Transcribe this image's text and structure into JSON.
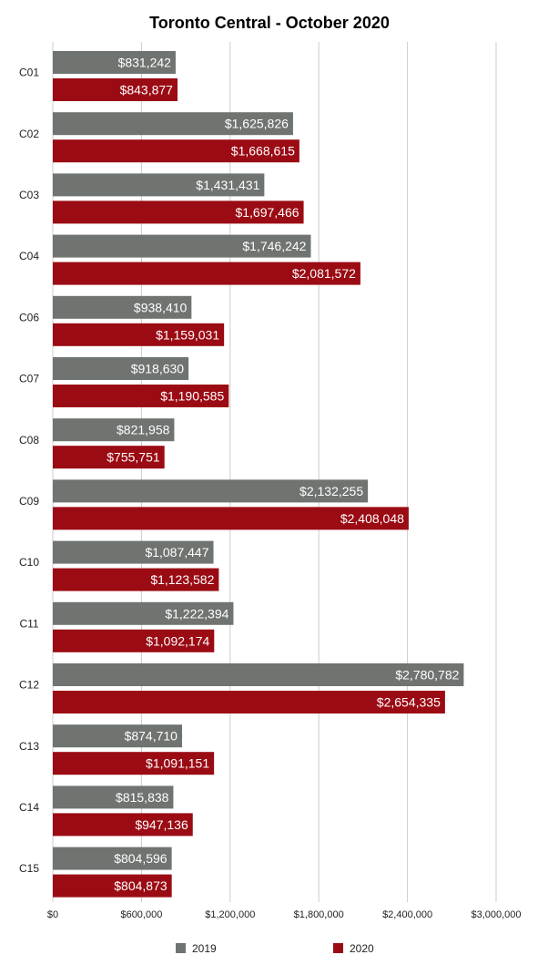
{
  "chart_data": {
    "type": "bar",
    "orientation": "horizontal",
    "title": "Toronto Central - October 2020",
    "xlabel": "",
    "ylabel": "",
    "xlim": [
      0,
      3000000
    ],
    "grid": true,
    "legend_position": "bottom",
    "tick_labels": [
      "$0",
      "$600,000",
      "$1,200,000",
      "$1,800,000",
      "$2,400,000",
      "$3,000,000"
    ],
    "tick_values": [
      0,
      600000,
      1200000,
      1800000,
      2400000,
      3000000
    ],
    "categories": [
      "C01",
      "C02",
      "C03",
      "C04",
      "C06",
      "C07",
      "C08",
      "C09",
      "C10",
      "C11",
      "C12",
      "C13",
      "C14",
      "C15"
    ],
    "series": [
      {
        "name": "2019",
        "color": "#6f7471",
        "values": [
          831242,
          1625826,
          1431431,
          1746242,
          938410,
          918630,
          821958,
          2132255,
          1087447,
          1222394,
          2780782,
          874710,
          815838,
          804596
        ],
        "labels": [
          "$831,242",
          "$1,625,826",
          "$1,431,431",
          "$1,746,242",
          "$938,410",
          "$918,630",
          "$821,958",
          "$2,132,255",
          "$1,087,447",
          "$1,222,394",
          "$2,780,782",
          "$874,710",
          "$815,838",
          "$804,596"
        ]
      },
      {
        "name": "2020",
        "color": "#9b0b14",
        "values": [
          843877,
          1668615,
          1697466,
          2081572,
          1159031,
          1190585,
          755751,
          2408048,
          1123582,
          1092174,
          2654335,
          1091151,
          947136,
          804873
        ],
        "labels": [
          "$843,877",
          "$1,668,615",
          "$1,697,466",
          "$2,081,572",
          "$1,159,031",
          "$1,190,585",
          "$755,751",
          "$2,408,048",
          "$1,123,582",
          "$1,092,174",
          "$2,654,335",
          "$1,091,151",
          "$947,136",
          "$804,873"
        ]
      }
    ]
  }
}
